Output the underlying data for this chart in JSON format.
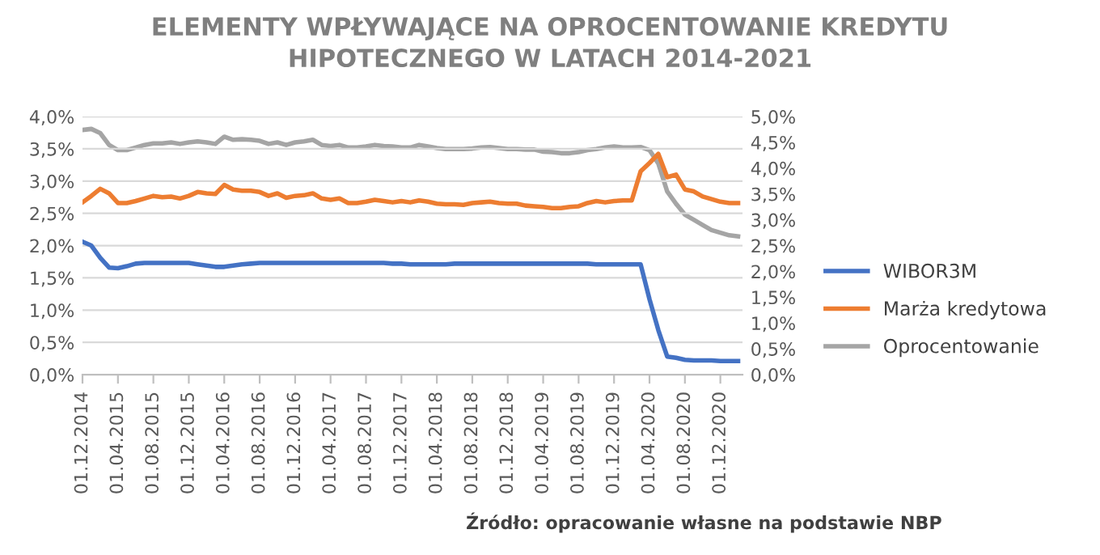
{
  "chart_data": {
    "type": "line",
    "title": "ELEMENTY WPŁYWAJĄCE NA OPROCENTOWANIE KREDYTU\nHIPOTECZNEGO W LATACH 2014-2021",
    "categories": [
      "01.12.2014",
      null,
      null,
      null,
      "01.04.2015",
      null,
      null,
      null,
      "01.08.2015",
      null,
      null,
      null,
      "01.12.2015",
      null,
      null,
      null,
      "01.04.2016",
      null,
      null,
      null,
      "01.08.2016",
      null,
      null,
      null,
      "01.12.2016",
      null,
      null,
      null,
      "01.04.2017",
      null,
      null,
      null,
      "01.08.2017",
      null,
      null,
      null,
      "01.12.2017",
      null,
      null,
      null,
      "01.04.2018",
      null,
      null,
      null,
      "01.08.2018",
      null,
      null,
      null,
      "01.12.2018",
      null,
      null,
      null,
      "01.04.2019",
      null,
      null,
      null,
      "01.08.2019",
      null,
      null,
      null,
      "01.12.2019",
      null,
      null,
      null,
      "01.04.2020",
      null,
      null,
      null,
      "01.08.2020",
      null,
      null,
      null,
      "01.12.2020",
      null,
      null
    ],
    "series": [
      {
        "name": "WIBOR3M",
        "color": "#4472c4",
        "values": [
          2.06,
          2.0,
          1.81,
          1.66,
          1.65,
          1.68,
          1.72,
          1.73,
          1.73,
          1.73,
          1.73,
          1.73,
          1.73,
          1.71,
          1.69,
          1.67,
          1.67,
          1.69,
          1.71,
          1.72,
          1.73,
          1.73,
          1.73,
          1.73,
          1.73,
          1.73,
          1.73,
          1.73,
          1.73,
          1.73,
          1.73,
          1.73,
          1.73,
          1.73,
          1.73,
          1.72,
          1.72,
          1.71,
          1.71,
          1.71,
          1.71,
          1.71,
          1.72,
          1.72,
          1.72,
          1.72,
          1.72,
          1.72,
          1.72,
          1.72,
          1.72,
          1.72,
          1.72,
          1.72,
          1.72,
          1.72,
          1.72,
          1.72,
          1.71,
          1.71,
          1.71,
          1.71,
          1.71,
          1.71,
          1.17,
          0.69,
          0.28,
          0.26,
          0.23,
          0.22,
          0.22,
          0.22,
          0.21,
          0.21,
          0.21
        ]
      },
      {
        "name": "Marża kredytowa",
        "color": "#ed7d31",
        "values": [
          2.67,
          2.77,
          2.88,
          2.81,
          2.66,
          2.66,
          2.69,
          2.73,
          2.77,
          2.75,
          2.76,
          2.73,
          2.77,
          2.83,
          2.81,
          2.8,
          2.94,
          2.87,
          2.85,
          2.85,
          2.83,
          2.77,
          2.81,
          2.74,
          2.77,
          2.78,
          2.81,
          2.73,
          2.71,
          2.73,
          2.66,
          2.66,
          2.68,
          2.71,
          2.69,
          2.67,
          2.69,
          2.67,
          2.7,
          2.68,
          2.65,
          2.64,
          2.64,
          2.63,
          2.66,
          2.67,
          2.68,
          2.66,
          2.65,
          2.65,
          2.62,
          2.61,
          2.6,
          2.58,
          2.58,
          2.6,
          2.61,
          2.66,
          2.69,
          2.67,
          2.69,
          2.7,
          2.7,
          3.15,
          3.28,
          3.42,
          3.06,
          3.1,
          2.87,
          2.84,
          2.76,
          2.72,
          2.68,
          2.66,
          2.66
        ]
      },
      {
        "name": "Oprocentowanie",
        "color": "#a5a5a5",
        "axis": "y2",
        "values": [
          4.74,
          4.76,
          4.68,
          4.45,
          4.35,
          4.35,
          4.4,
          4.45,
          4.48,
          4.48,
          4.5,
          4.47,
          4.5,
          4.52,
          4.5,
          4.47,
          4.61,
          4.55,
          4.56,
          4.55,
          4.53,
          4.47,
          4.5,
          4.45,
          4.5,
          4.52,
          4.55,
          4.45,
          4.43,
          4.45,
          4.4,
          4.4,
          4.42,
          4.45,
          4.43,
          4.42,
          4.4,
          4.4,
          4.45,
          4.42,
          4.39,
          4.37,
          4.37,
          4.37,
          4.38,
          4.4,
          4.41,
          4.39,
          4.37,
          4.37,
          4.36,
          4.36,
          4.32,
          4.31,
          4.29,
          4.29,
          4.31,
          4.35,
          4.37,
          4.4,
          4.42,
          4.4,
          4.4,
          4.41,
          4.35,
          4.09,
          3.55,
          3.31,
          3.1,
          3.0,
          2.9,
          2.8,
          2.75,
          2.7,
          2.68
        ]
      }
    ],
    "ylim": [
      0,
      4
    ],
    "yticks": [
      {
        "value": 0,
        "label": "0,0%"
      },
      {
        "value": 0.5,
        "label": "0,5%"
      },
      {
        "value": 1,
        "label": "1,0%"
      },
      {
        "value": 1.5,
        "label": "1,5%"
      },
      {
        "value": 2,
        "label": "2,0%"
      },
      {
        "value": 2.5,
        "label": "2,5%"
      },
      {
        "value": 3,
        "label": "3,0%"
      },
      {
        "value": 3.5,
        "label": "3,5%"
      },
      {
        "value": 4,
        "label": "4,0%"
      }
    ],
    "y2lim": [
      0,
      5
    ],
    "y2ticks": [
      {
        "value": 0,
        "label": "0,0%"
      },
      {
        "value": 0.5,
        "label": "0,5%"
      },
      {
        "value": 1,
        "label": "1,0%"
      },
      {
        "value": 1.5,
        "label": "1,5%"
      },
      {
        "value": 2,
        "label": "2,0%"
      },
      {
        "value": 2.5,
        "label": "2,5%"
      },
      {
        "value": 3,
        "label": "3,0%"
      },
      {
        "value": 3.5,
        "label": "3,5%"
      },
      {
        "value": 4,
        "label": "4,0%"
      },
      {
        "value": 4.5,
        "label": "4,5%"
      },
      {
        "value": 5,
        "label": "5,0%"
      }
    ],
    "grid": "y",
    "legend": "right",
    "marker": "none",
    "line_style": "solid",
    "annotations": [
      "Źródło: opracowanie własne na podstawie NBP"
    ]
  }
}
